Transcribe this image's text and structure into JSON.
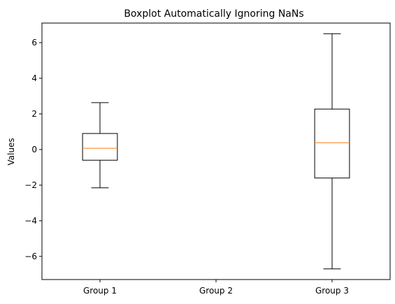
{
  "chart_data": {
    "type": "boxplot",
    "title": "Boxplot Automatically Ignoring NaNs",
    "xlabel": "",
    "ylabel": "Values",
    "ylim": [
      -7.3,
      7.1
    ],
    "yticks": [
      -6,
      -4,
      -2,
      0,
      2,
      4,
      6
    ],
    "ytick_labels": [
      "−6",
      "−4",
      "−2",
      "0",
      "2",
      "4",
      "6"
    ],
    "categories": [
      "Group 1",
      "Group 2",
      "Group 3"
    ],
    "boxes": [
      {
        "whisker_low": -2.15,
        "q1": -0.6,
        "median": 0.07,
        "q3": 0.9,
        "whisker_high": 2.63
      },
      null,
      {
        "whisker_low": -6.7,
        "q1": -1.6,
        "median": 0.38,
        "q3": 2.27,
        "whisker_high": 6.5
      }
    ],
    "grid": false,
    "colors": {
      "box": "#000000",
      "median": "#ff7f0e"
    }
  }
}
